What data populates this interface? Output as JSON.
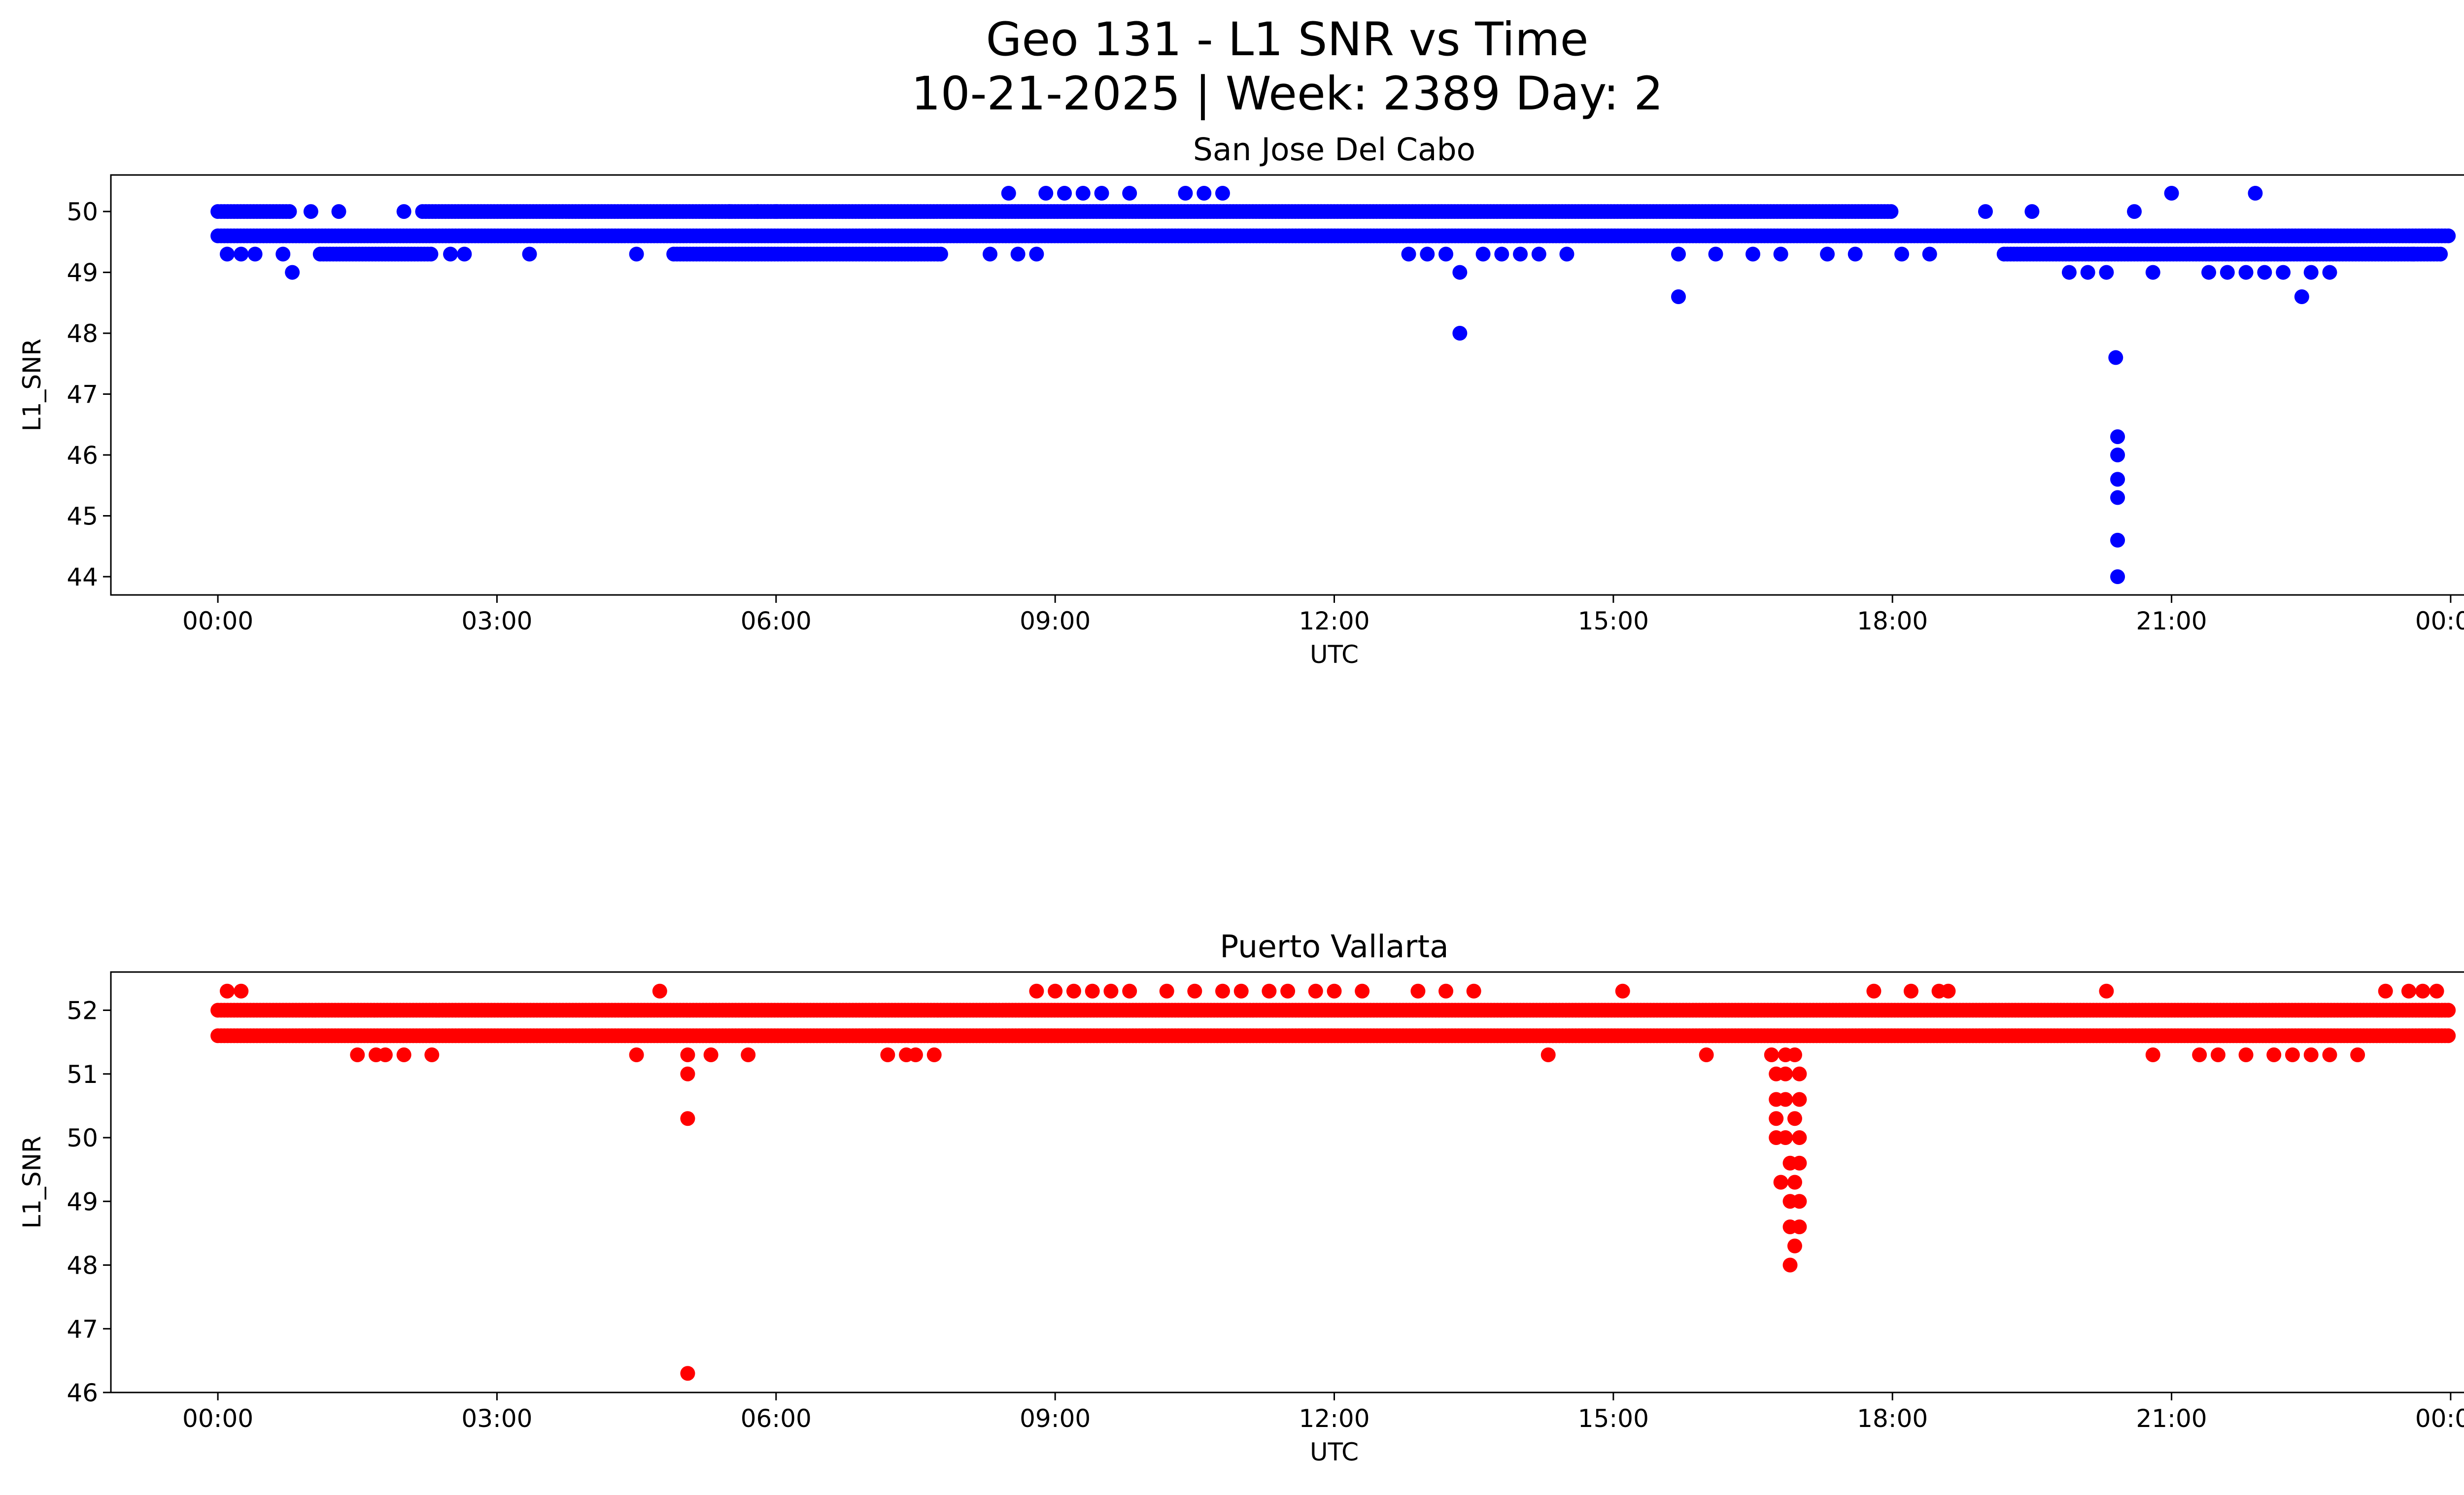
{
  "figure": {
    "title_line1": "Geo 131 - L1 SNR vs Time",
    "title_line2": "10-21-2025 | Week: 2389 Day: 2"
  },
  "chart_data": [
    {
      "type": "scatter",
      "title": "San Jose Del Cabo",
      "xlabel": "UTC",
      "ylabel": "L1_SNR",
      "color": "#0000ff",
      "xlim": [
        "23:00",
        "24:00+"
      ],
      "x_ticks": [
        "00:00",
        "03:00",
        "06:00",
        "09:00",
        "12:00",
        "15:00",
        "18:00",
        "21:00",
        "00:00"
      ],
      "x_tick_hours": [
        0,
        3,
        6,
        9,
        12,
        15,
        18,
        21,
        24
      ],
      "x_range_hours": [
        -1.15,
        25.15
      ],
      "y_ticks": [
        44,
        45,
        46,
        47,
        48,
        49,
        50
      ],
      "ylim": [
        43.7,
        50.6
      ],
      "grid": false,
      "bands": [
        {
          "y": 49.6,
          "from_hour": 0.0,
          "to_hour": 24.0
        },
        {
          "y": 50.0,
          "from_hour": 2.2,
          "to_hour": 18.0
        },
        {
          "y": 49.3,
          "from_hour": 4.9,
          "to_hour": 7.8
        },
        {
          "y": 49.3,
          "from_hour": 1.1,
          "to_hour": 2.3
        },
        {
          "y": 49.3,
          "from_hour": 19.2,
          "to_hour": 23.9
        },
        {
          "y": 50.0,
          "from_hour": 0.0,
          "to_hour": 0.8
        }
      ],
      "points": [
        {
          "t": 0.1,
          "snr": 49.3
        },
        {
          "t": 0.25,
          "snr": 49.3
        },
        {
          "t": 0.4,
          "snr": 49.3
        },
        {
          "t": 0.8,
          "snr": 49.0
        },
        {
          "t": 0.7,
          "snr": 49.3
        },
        {
          "t": 1.0,
          "snr": 50.0
        },
        {
          "t": 1.3,
          "snr": 50.0
        },
        {
          "t": 2.0,
          "snr": 50.0
        },
        {
          "t": 2.5,
          "snr": 49.3
        },
        {
          "t": 2.65,
          "snr": 49.3
        },
        {
          "t": 3.35,
          "snr": 49.3
        },
        {
          "t": 4.5,
          "snr": 49.3
        },
        {
          "t": 5.5,
          "snr": 50.0
        },
        {
          "t": 5.8,
          "snr": 50.0
        },
        {
          "t": 6.0,
          "snr": 50.0
        },
        {
          "t": 8.5,
          "snr": 50.3
        },
        {
          "t": 8.9,
          "snr": 50.3
        },
        {
          "t": 9.1,
          "snr": 50.3
        },
        {
          "t": 9.3,
          "snr": 50.3
        },
        {
          "t": 9.5,
          "snr": 50.3
        },
        {
          "t": 9.8,
          "snr": 50.3
        },
        {
          "t": 10.4,
          "snr": 50.3
        },
        {
          "t": 10.6,
          "snr": 50.3
        },
        {
          "t": 10.8,
          "snr": 50.3
        },
        {
          "t": 8.3,
          "snr": 49.3
        },
        {
          "t": 8.6,
          "snr": 49.3
        },
        {
          "t": 8.8,
          "snr": 49.3
        },
        {
          "t": 12.8,
          "snr": 49.3
        },
        {
          "t": 13.0,
          "snr": 49.3
        },
        {
          "t": 13.2,
          "snr": 49.3
        },
        {
          "t": 13.35,
          "snr": 49.0
        },
        {
          "t": 13.35,
          "snr": 48.0
        },
        {
          "t": 13.6,
          "snr": 49.3
        },
        {
          "t": 13.8,
          "snr": 49.3
        },
        {
          "t": 14.0,
          "snr": 49.3
        },
        {
          "t": 14.2,
          "snr": 49.3
        },
        {
          "t": 14.5,
          "snr": 49.3
        },
        {
          "t": 15.7,
          "snr": 49.3
        },
        {
          "t": 15.7,
          "snr": 48.6
        },
        {
          "t": 16.1,
          "snr": 49.3
        },
        {
          "t": 16.5,
          "snr": 49.3
        },
        {
          "t": 16.8,
          "snr": 49.3
        },
        {
          "t": 17.3,
          "snr": 49.3
        },
        {
          "t": 17.6,
          "snr": 49.3
        },
        {
          "t": 18.1,
          "snr": 49.3
        },
        {
          "t": 18.4,
          "snr": 49.3
        },
        {
          "t": 19.0,
          "snr": 50.0
        },
        {
          "t": 19.5,
          "snr": 50.0
        },
        {
          "t": 19.9,
          "snr": 49.0
        },
        {
          "t": 20.1,
          "snr": 49.0
        },
        {
          "t": 20.3,
          "snr": 49.0
        },
        {
          "t": 20.4,
          "snr": 47.6
        },
        {
          "t": 20.42,
          "snr": 46.3
        },
        {
          "t": 20.42,
          "snr": 46.0
        },
        {
          "t": 20.42,
          "snr": 45.6
        },
        {
          "t": 20.42,
          "snr": 45.3
        },
        {
          "t": 20.42,
          "snr": 44.6
        },
        {
          "t": 20.42,
          "snr": 44.0
        },
        {
          "t": 20.6,
          "snr": 50.0
        },
        {
          "t": 20.8,
          "snr": 49.0
        },
        {
          "t": 21.0,
          "snr": 50.3
        },
        {
          "t": 21.4,
          "snr": 49.0
        },
        {
          "t": 21.6,
          "snr": 49.0
        },
        {
          "t": 21.8,
          "snr": 49.0
        },
        {
          "t": 21.9,
          "snr": 50.3
        },
        {
          "t": 22.0,
          "snr": 49.0
        },
        {
          "t": 22.2,
          "snr": 49.0
        },
        {
          "t": 22.4,
          "snr": 48.6
        },
        {
          "t": 22.5,
          "snr": 49.0
        },
        {
          "t": 22.7,
          "snr": 49.0
        },
        {
          "t": 23.6,
          "snr": 49.3
        }
      ]
    },
    {
      "type": "scatter",
      "title": "Puerto Vallarta",
      "xlabel": "UTC",
      "ylabel": "L1_SNR",
      "color": "#ff0000",
      "x_ticks": [
        "00:00",
        "03:00",
        "06:00",
        "09:00",
        "12:00",
        "15:00",
        "18:00",
        "21:00",
        "00:00"
      ],
      "x_tick_hours": [
        0,
        3,
        6,
        9,
        12,
        15,
        18,
        21,
        24
      ],
      "x_range_hours": [
        -1.15,
        25.15
      ],
      "y_ticks": [
        46,
        47,
        48,
        49,
        50,
        51,
        52
      ],
      "ylim": [
        46.0,
        52.6
      ],
      "grid": false,
      "bands": [
        {
          "y": 52.0,
          "from_hour": 0.0,
          "to_hour": 24.0
        },
        {
          "y": 51.6,
          "from_hour": 0.0,
          "to_hour": 24.0
        }
      ],
      "points": [
        {
          "t": 0.1,
          "snr": 52.3
        },
        {
          "t": 0.25,
          "snr": 52.3
        },
        {
          "t": 1.5,
          "snr": 51.3
        },
        {
          "t": 1.7,
          "snr": 51.3
        },
        {
          "t": 1.8,
          "snr": 51.3
        },
        {
          "t": 2.0,
          "snr": 51.3
        },
        {
          "t": 2.3,
          "snr": 51.3
        },
        {
          "t": 4.5,
          "snr": 51.3
        },
        {
          "t": 4.75,
          "snr": 52.3
        },
        {
          "t": 5.05,
          "snr": 51.3
        },
        {
          "t": 5.05,
          "snr": 51.0
        },
        {
          "t": 5.05,
          "snr": 50.3
        },
        {
          "t": 5.05,
          "snr": 46.3
        },
        {
          "t": 5.3,
          "snr": 51.3
        },
        {
          "t": 5.7,
          "snr": 51.3
        },
        {
          "t": 7.2,
          "snr": 51.3
        },
        {
          "t": 7.4,
          "snr": 51.3
        },
        {
          "t": 7.5,
          "snr": 51.3
        },
        {
          "t": 7.7,
          "snr": 51.3
        },
        {
          "t": 8.8,
          "snr": 52.3
        },
        {
          "t": 9.0,
          "snr": 52.3
        },
        {
          "t": 9.2,
          "snr": 52.3
        },
        {
          "t": 9.4,
          "snr": 52.3
        },
        {
          "t": 9.6,
          "snr": 52.3
        },
        {
          "t": 9.8,
          "snr": 52.3
        },
        {
          "t": 10.2,
          "snr": 52.3
        },
        {
          "t": 10.5,
          "snr": 52.3
        },
        {
          "t": 10.8,
          "snr": 52.3
        },
        {
          "t": 11.0,
          "snr": 52.3
        },
        {
          "t": 11.3,
          "snr": 52.3
        },
        {
          "t": 11.5,
          "snr": 52.3
        },
        {
          "t": 11.8,
          "snr": 52.3
        },
        {
          "t": 12.0,
          "snr": 52.3
        },
        {
          "t": 12.3,
          "snr": 52.3
        },
        {
          "t": 12.9,
          "snr": 52.3
        },
        {
          "t": 13.2,
          "snr": 52.3
        },
        {
          "t": 13.5,
          "snr": 52.3
        },
        {
          "t": 14.3,
          "snr": 51.3
        },
        {
          "t": 15.1,
          "snr": 52.3
        },
        {
          "t": 16.0,
          "snr": 51.3
        },
        {
          "t": 16.7,
          "snr": 51.3
        },
        {
          "t": 16.75,
          "snr": 51.0
        },
        {
          "t": 16.75,
          "snr": 50.6
        },
        {
          "t": 16.75,
          "snr": 50.3
        },
        {
          "t": 16.75,
          "snr": 50.0
        },
        {
          "t": 16.8,
          "snr": 49.3
        },
        {
          "t": 16.85,
          "snr": 51.3
        },
        {
          "t": 16.85,
          "snr": 51.0
        },
        {
          "t": 16.85,
          "snr": 50.6
        },
        {
          "t": 16.85,
          "snr": 50.0
        },
        {
          "t": 16.9,
          "snr": 49.6
        },
        {
          "t": 16.9,
          "snr": 49.0
        },
        {
          "t": 16.9,
          "snr": 48.6
        },
        {
          "t": 16.9,
          "snr": 48.0
        },
        {
          "t": 16.95,
          "snr": 51.3
        },
        {
          "t": 16.95,
          "snr": 50.3
        },
        {
          "t": 16.95,
          "snr": 49.3
        },
        {
          "t": 17.0,
          "snr": 51.0
        },
        {
          "t": 17.0,
          "snr": 50.6
        },
        {
          "t": 17.0,
          "snr": 50.0
        },
        {
          "t": 17.0,
          "snr": 49.6
        },
        {
          "t": 17.0,
          "snr": 49.0
        },
        {
          "t": 17.0,
          "snr": 48.6
        },
        {
          "t": 16.95,
          "snr": 48.3
        },
        {
          "t": 17.8,
          "snr": 52.3
        },
        {
          "t": 18.2,
          "snr": 52.3
        },
        {
          "t": 18.5,
          "snr": 52.3
        },
        {
          "t": 18.6,
          "snr": 52.3
        },
        {
          "t": 20.3,
          "snr": 52.3
        },
        {
          "t": 20.8,
          "snr": 51.3
        },
        {
          "t": 21.3,
          "snr": 51.3
        },
        {
          "t": 21.5,
          "snr": 51.3
        },
        {
          "t": 21.8,
          "snr": 51.3
        },
        {
          "t": 22.1,
          "snr": 51.3
        },
        {
          "t": 22.3,
          "snr": 51.3
        },
        {
          "t": 22.5,
          "snr": 51.3
        },
        {
          "t": 22.7,
          "snr": 51.3
        },
        {
          "t": 23.0,
          "snr": 51.3
        },
        {
          "t": 23.3,
          "snr": 52.3
        },
        {
          "t": 23.55,
          "snr": 52.3
        },
        {
          "t": 23.7,
          "snr": 52.3
        },
        {
          "t": 23.85,
          "snr": 52.3
        }
      ]
    }
  ]
}
